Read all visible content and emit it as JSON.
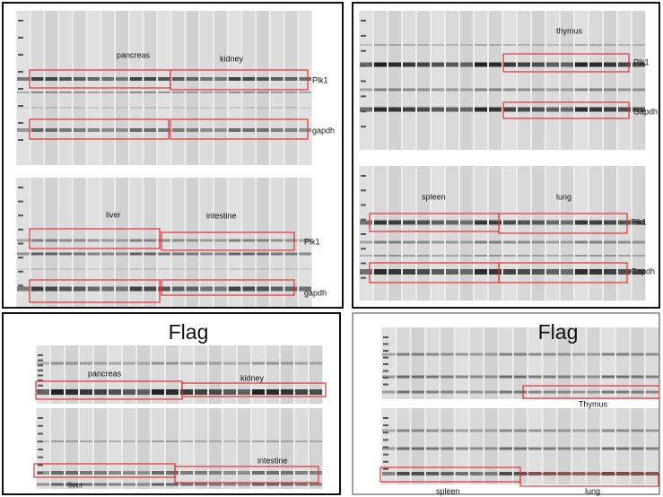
{
  "panels": [
    {
      "blots": [
        {
          "tissues": [
            "pancreas",
            "kidney"
          ],
          "bands": [
            "Plk1",
            "gapdh"
          ]
        },
        {
          "tissues": [
            "liver",
            "intestine"
          ],
          "bands": [
            "Plk1",
            "gapdh"
          ]
        }
      ]
    },
    {
      "blots": [
        {
          "tissues": [
            "thymus"
          ],
          "bands": [
            "Plk1",
            "Gapdh"
          ]
        },
        {
          "tissues": [
            "spleen",
            "lung"
          ],
          "bands": [
            "Plk1",
            "Gapdh"
          ]
        }
      ]
    },
    {
      "title": "Flag",
      "blots": [
        {
          "tissues": [
            "pancreas",
            "kidney"
          ]
        },
        {
          "tissues": [
            "intestine",
            "liver"
          ]
        }
      ]
    },
    {
      "title": "Flag",
      "blots": [
        {
          "tissues": [
            "Thymus"
          ]
        },
        {
          "tissues": [
            "spleen",
            "lung"
          ]
        }
      ]
    }
  ]
}
